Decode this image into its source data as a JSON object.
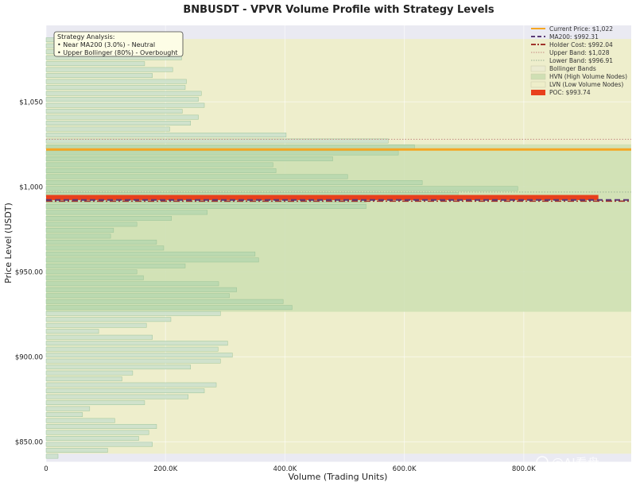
{
  "chart_data": {
    "type": "bar",
    "orientation": "horizontal",
    "title": "BNBUSDT - VPVR Volume Profile with Strategy Levels",
    "xlabel": "Volume (Trading Units)",
    "ylabel": "Price Level (USDT)",
    "xlim": [
      0,
      980000
    ],
    "ylim": [
      838,
      1095
    ],
    "x_ticks": [
      0,
      200000,
      400000,
      600000,
      800000
    ],
    "x_tick_labels": [
      "0",
      "200.0K",
      "400.0K",
      "600.0K",
      "800.0K"
    ],
    "y_ticks": [
      850,
      900,
      950,
      1000,
      1050
    ],
    "y_tick_labels": [
      "$850.00",
      "$900.00",
      "$950.00",
      "$1,000",
      "$1,050"
    ],
    "grid": true,
    "legend_position": "top-right",
    "bar_height": 2.5,
    "bins": [
      {
        "price": 841.5,
        "volume": 20000
      },
      {
        "price": 845,
        "volume": 103000
      },
      {
        "price": 848.5,
        "volume": 178000
      },
      {
        "price": 852,
        "volume": 155000
      },
      {
        "price": 855.5,
        "volume": 172000
      },
      {
        "price": 859,
        "volume": 185000
      },
      {
        "price": 862.5,
        "volume": 115000
      },
      {
        "price": 866,
        "volume": 61000
      },
      {
        "price": 869.5,
        "volume": 73000
      },
      {
        "price": 873,
        "volume": 165000
      },
      {
        "price": 876.5,
        "volume": 238000
      },
      {
        "price": 880,
        "volume": 265000
      },
      {
        "price": 883.5,
        "volume": 285000
      },
      {
        "price": 887,
        "volume": 127000
      },
      {
        "price": 890.5,
        "volume": 145000
      },
      {
        "price": 894,
        "volume": 242000
      },
      {
        "price": 897.5,
        "volume": 292000
      },
      {
        "price": 901,
        "volume": 312000
      },
      {
        "price": 904.5,
        "volume": 288000
      },
      {
        "price": 908,
        "volume": 304000
      },
      {
        "price": 911.5,
        "volume": 178000
      },
      {
        "price": 915,
        "volume": 88000
      },
      {
        "price": 918.5,
        "volume": 168000
      },
      {
        "price": 922,
        "volume": 209000
      },
      {
        "price": 925.5,
        "volume": 292000
      },
      {
        "price": 929,
        "volume": 412000
      },
      {
        "price": 932.5,
        "volume": 397000
      },
      {
        "price": 936,
        "volume": 307000
      },
      {
        "price": 939.5,
        "volume": 319000
      },
      {
        "price": 943,
        "volume": 289000
      },
      {
        "price": 946.5,
        "volume": 163000
      },
      {
        "price": 950,
        "volume": 152000
      },
      {
        "price": 953.5,
        "volume": 233000
      },
      {
        "price": 957,
        "volume": 356000
      },
      {
        "price": 960.5,
        "volume": 350000
      },
      {
        "price": 964,
        "volume": 197000
      },
      {
        "price": 967.5,
        "volume": 185000
      },
      {
        "price": 971,
        "volume": 108000
      },
      {
        "price": 974.5,
        "volume": 113000
      },
      {
        "price": 978,
        "volume": 152000
      },
      {
        "price": 981.5,
        "volume": 210000
      },
      {
        "price": 985,
        "volume": 270000
      },
      {
        "price": 988.5,
        "volume": 536000
      },
      {
        "price": 992,
        "volume": 536000
      },
      {
        "price": 995.5,
        "volume": 690000
      },
      {
        "price": 999,
        "volume": 790000
      },
      {
        "price": 1002.5,
        "volume": 630000
      },
      {
        "price": 1006,
        "volume": 505000
      },
      {
        "price": 1009.5,
        "volume": 385000
      },
      {
        "price": 1013,
        "volume": 380000
      },
      {
        "price": 1016.5,
        "volume": 480000
      },
      {
        "price": 1020,
        "volume": 590000
      },
      {
        "price": 1023.5,
        "volume": 617000
      },
      {
        "price": 1027,
        "volume": 573000
      },
      {
        "price": 1030.5,
        "volume": 402000
      },
      {
        "price": 1034,
        "volume": 207000
      },
      {
        "price": 1037.5,
        "volume": 242000
      },
      {
        "price": 1041,
        "volume": 255000
      },
      {
        "price": 1044.5,
        "volume": 228000
      },
      {
        "price": 1048,
        "volume": 265000
      },
      {
        "price": 1051.5,
        "volume": 255000
      },
      {
        "price": 1055,
        "volume": 260000
      },
      {
        "price": 1058.5,
        "volume": 233000
      },
      {
        "price": 1062,
        "volume": 235000
      },
      {
        "price": 1065.5,
        "volume": 178000
      },
      {
        "price": 1069,
        "volume": 212000
      },
      {
        "price": 1072.5,
        "volume": 165000
      },
      {
        "price": 1076,
        "volume": 227000
      },
      {
        "price": 1079.5,
        "volume": 175000
      },
      {
        "price": 1083,
        "volume": 92000
      },
      {
        "price": 1086.5,
        "volume": 22000
      }
    ],
    "bands": {
      "bollinger": {
        "from": 843,
        "to": 1087
      },
      "hvn": {
        "from": 926.5,
        "to": 1025
      },
      "hvn_upper_edge_volume": 925000
    },
    "levels": {
      "current_price": 1022,
      "ma200": 992.31,
      "holder_cost": 992.04,
      "upper_band": 1028,
      "lower_band": 996.91,
      "poc": 993.74,
      "poc_volume": 925000
    },
    "legend": [
      {
        "key": "current_price",
        "label": "Current Price: $1,022",
        "style": "line",
        "color": "#f5a623"
      },
      {
        "key": "ma200",
        "label": "MA200: $992.31",
        "style": "dashed",
        "color": "#5b3a75"
      },
      {
        "key": "holder_cost",
        "label": "Holder Cost: $992.04",
        "style": "dashdot",
        "color": "#a0322b"
      },
      {
        "key": "upper_band",
        "label": "Upper Band: $1,028",
        "style": "dotted",
        "color": "#c48880"
      },
      {
        "key": "lower_band",
        "label": "Lower Band: $996.91",
        "style": "dotted",
        "color": "#9ab294"
      },
      {
        "key": "bollinger",
        "label": "Bollinger Bands",
        "style": "patch",
        "color": "#ebebd1"
      },
      {
        "key": "hvn",
        "label": "HVN (High Volume Nodes)",
        "style": "patch",
        "color": "#cfdfb4"
      },
      {
        "key": "lvn",
        "label": "LVN (Low Volume Nodes)",
        "style": "patch",
        "color": "#eeeeca"
      },
      {
        "key": "poc",
        "label": "POC: $993.74",
        "style": "patch",
        "color": "#e8401c"
      }
    ],
    "annotation": {
      "title": "Strategy Analysis:",
      "lines": [
        "• Near MA200 (3.0%) - Neutral",
        "• Upper Bollinger (80%) - Overbought"
      ]
    }
  },
  "colors": {
    "plot_bg": "#eaeaf2",
    "bollinger": "#eeeecc",
    "hvn": "#cddfb1",
    "bar_lvn": "#cde1cd",
    "bar_hvn": "#b9d9b0",
    "bar_edge": "#93bf93",
    "current_price": "#f5a623",
    "ma200": "#5b3a75",
    "holder_cost": "#a0322b",
    "upper_band": "#c48880",
    "lower_band": "#9ab294",
    "poc": "#e8401c",
    "annotation_bg": "#fdfde6"
  },
  "watermark": "@AI看盘"
}
